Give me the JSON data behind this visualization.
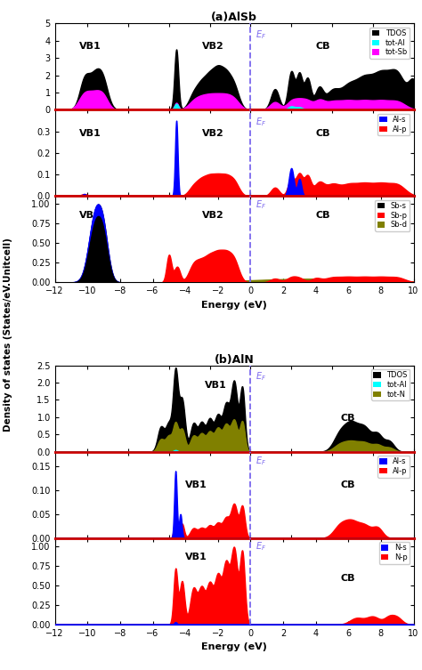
{
  "title_a": "(a)AlSb",
  "title_b": "(b)AlN",
  "xlabel": "Energy (eV)",
  "ylabel": "Density of states (States/eV.Unitcell)",
  "x_min": -12,
  "x_max": 10,
  "fermi_color": "#7B68EE",
  "panel_border_color": "#CC0000"
}
